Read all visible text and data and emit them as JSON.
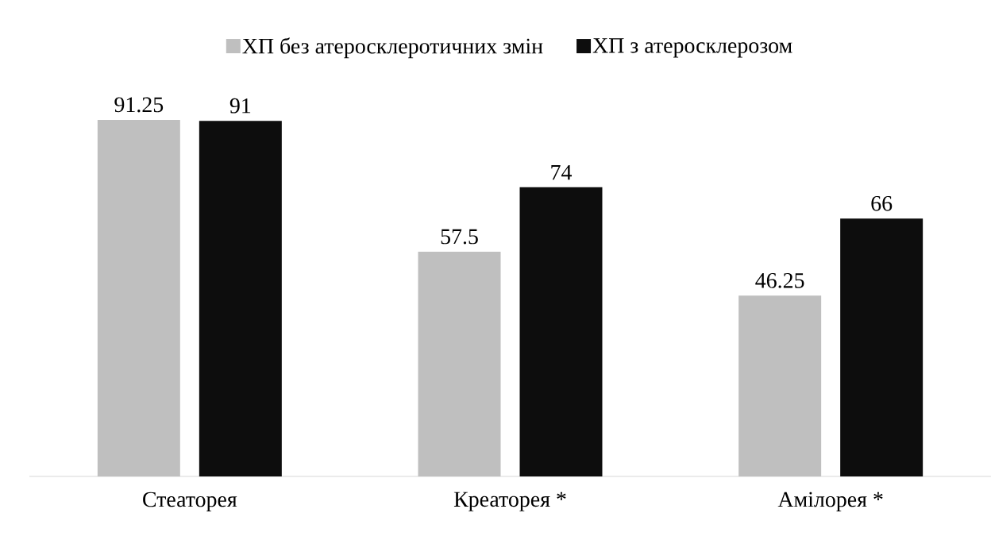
{
  "chart_data": {
    "type": "bar",
    "categories": [
      "Стеаторея",
      "Креаторея *",
      "Амілорея *"
    ],
    "series": [
      {
        "name": "ХП без атеросклеротичних змін",
        "color": "#bfbfbf",
        "values": [
          91.25,
          57.5,
          46.25
        ]
      },
      {
        "name": "ХП з атеросклерозом",
        "color": "#0d0d0d",
        "values": [
          91,
          74,
          66
        ]
      }
    ],
    "data_labels": true,
    "legend": "top"
  }
}
